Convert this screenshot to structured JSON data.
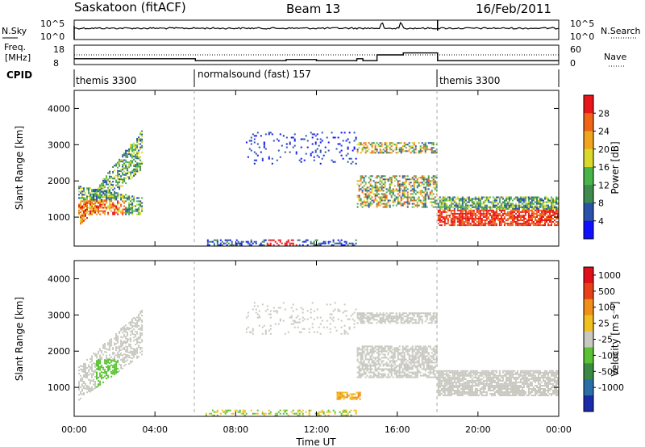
{
  "header": {
    "station": "Saskatoon (fitACF)",
    "beam": "Beam 13",
    "date": "16/Feb/2011"
  },
  "sky_panel": {
    "left_label": "N.Sky",
    "right_label": "N.Search",
    "left_ticks": [
      "10^5",
      "10^0"
    ],
    "right_ticks": [
      "10^5",
      "10^0"
    ]
  },
  "freq_panel": {
    "left_label_line1": "Freq.",
    "left_label_line2": "[MHz]",
    "right_label": "Nave",
    "left_ticks": [
      "18",
      "8"
    ],
    "right_ticks": [
      "60",
      "0"
    ]
  },
  "cpid": {
    "label": "CPID",
    "segments": [
      {
        "name": "themis 3300",
        "start_hr": 0,
        "end_hr": 6
      },
      {
        "name": "normalsound (fast) 157",
        "start_hr": 6,
        "end_hr": 18
      },
      {
        "name": "themis 3300",
        "start_hr": 18,
        "end_hr": 24
      }
    ]
  },
  "chart_data": [
    {
      "type": "heatmap",
      "name": "power",
      "ylabel": "Slant Range [km]",
      "yticks": [
        "4000",
        "3000",
        "2000",
        "1000"
      ],
      "ylim": [
        200,
        4500
      ],
      "xlim": [
        0,
        24
      ],
      "colorbar_label": "Power [dB]",
      "colorbar_ticks": [
        "28",
        "24",
        "20",
        "16",
        "12",
        "8",
        "4"
      ],
      "colors": [
        "#1010ff",
        "#2a52a8",
        "#3f8a4e",
        "#49b44a",
        "#d9d92c",
        "#f0a51e",
        "#f06418",
        "#e8161a"
      ]
    },
    {
      "type": "heatmap",
      "name": "velocity",
      "ylabel": "Slant Range [km]",
      "yticks": [
        "4000",
        "3000",
        "2000",
        "1000"
      ],
      "ylim": [
        200,
        4500
      ],
      "xlim": [
        0,
        24
      ],
      "colorbar_label": "Velocity [m s⁻¹]",
      "colorbar_ticks": [
        "1000",
        "500",
        "100",
        "25",
        "-25",
        "-100",
        "-500",
        "-1000"
      ],
      "colors": [
        "#1a2aa8",
        "#2a6ea8",
        "#3a8a44",
        "#5ac232",
        "#c8c8c0",
        "#f0c020",
        "#f0901a",
        "#e84018",
        "#e0101a"
      ]
    }
  ],
  "x_axis": {
    "label": "Time UT",
    "ticks": [
      "00:00",
      "04:00",
      "08:00",
      "12:00",
      "16:00",
      "20:00",
      "00:00"
    ]
  }
}
